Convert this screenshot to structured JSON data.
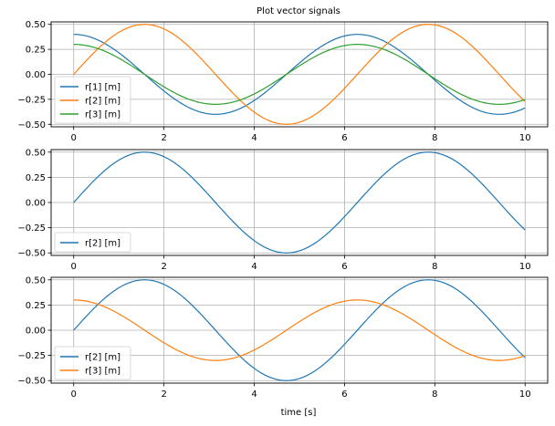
{
  "figure": {
    "title": "Plot vector signals",
    "xlabel": "time [s]"
  },
  "colors": {
    "c0": "#1f77b4",
    "c1": "#ff7f0e",
    "c2": "#2ca02c",
    "grid": "#b0b0b0"
  },
  "chart_data": [
    {
      "type": "line",
      "title": "Plot vector signals",
      "xlabel": "",
      "ylabel": "",
      "xlim": [
        -0.5,
        10.5
      ],
      "ylim": [
        -0.525,
        0.525
      ],
      "xticks": [
        0,
        2,
        4,
        6,
        8,
        10
      ],
      "yticks": [
        "0.50",
        "0.25",
        "0.00",
        "−0.25",
        "−0.50"
      ],
      "grid": true,
      "legend_position": "lower left",
      "series": [
        {
          "name": "r[1] [m]",
          "color": "#1f77b4",
          "formula": "0.4*cos(t)",
          "x": [
            0,
            1,
            2,
            3,
            4,
            5,
            6,
            7,
            8,
            9,
            10
          ],
          "values": [
            0.4,
            0.216,
            -0.166,
            -0.396,
            -0.261,
            0.113,
            0.384,
            0.302,
            -0.058,
            -0.364,
            -0.336
          ]
        },
        {
          "name": "r[2] [m]",
          "color": "#ff7f0e",
          "formula": "0.5*sin(t)",
          "x": [
            0,
            1,
            2,
            3,
            4,
            5,
            6,
            7,
            8,
            9,
            10
          ],
          "values": [
            0.0,
            0.421,
            0.455,
            0.071,
            -0.378,
            -0.479,
            -0.14,
            0.328,
            0.495,
            0.206,
            -0.272
          ]
        },
        {
          "name": "r[3] [m]",
          "color": "#2ca02c",
          "formula": "0.3*cos(t)",
          "x": [
            0,
            1,
            2,
            3,
            4,
            5,
            6,
            7,
            8,
            9,
            10
          ],
          "values": [
            0.3,
            0.162,
            -0.125,
            -0.297,
            -0.196,
            0.085,
            0.288,
            0.226,
            -0.044,
            -0.273,
            -0.252
          ]
        }
      ]
    },
    {
      "type": "line",
      "title": "",
      "xlabel": "",
      "ylabel": "",
      "xlim": [
        -0.5,
        10.5
      ],
      "ylim": [
        -0.525,
        0.525
      ],
      "xticks": [
        0,
        2,
        4,
        6,
        8,
        10
      ],
      "yticks": [
        "0.50",
        "0.25",
        "0.00",
        "−0.25",
        "−0.50"
      ],
      "grid": true,
      "legend_position": "lower left",
      "series": [
        {
          "name": "r[2] [m]",
          "color": "#1f77b4",
          "formula": "0.5*sin(t)",
          "x": [
            0,
            1,
            2,
            3,
            4,
            5,
            6,
            7,
            8,
            9,
            10
          ],
          "values": [
            0.0,
            0.421,
            0.455,
            0.071,
            -0.378,
            -0.479,
            -0.14,
            0.328,
            0.495,
            0.206,
            -0.272
          ]
        }
      ]
    },
    {
      "type": "line",
      "title": "",
      "xlabel": "time [s]",
      "ylabel": "",
      "xlim": [
        -0.5,
        10.5
      ],
      "ylim": [
        -0.525,
        0.525
      ],
      "xticks": [
        0,
        2,
        4,
        6,
        8,
        10
      ],
      "yticks": [
        "0.50",
        "0.25",
        "0.00",
        "−0.25",
        "−0.50"
      ],
      "grid": true,
      "legend_position": "lower left",
      "series": [
        {
          "name": "r[2] [m]",
          "color": "#1f77b4",
          "formula": "0.5*sin(t)",
          "x": [
            0,
            1,
            2,
            3,
            4,
            5,
            6,
            7,
            8,
            9,
            10
          ],
          "values": [
            0.0,
            0.421,
            0.455,
            0.071,
            -0.378,
            -0.479,
            -0.14,
            0.328,
            0.495,
            0.206,
            -0.272
          ]
        },
        {
          "name": "r[3] [m]",
          "color": "#ff7f0e",
          "formula": "0.3*cos(t)",
          "x": [
            0,
            1,
            2,
            3,
            4,
            5,
            6,
            7,
            8,
            9,
            10
          ],
          "values": [
            0.3,
            0.162,
            -0.125,
            -0.297,
            -0.196,
            0.085,
            0.288,
            0.226,
            -0.044,
            -0.273,
            -0.252
          ]
        }
      ]
    }
  ]
}
